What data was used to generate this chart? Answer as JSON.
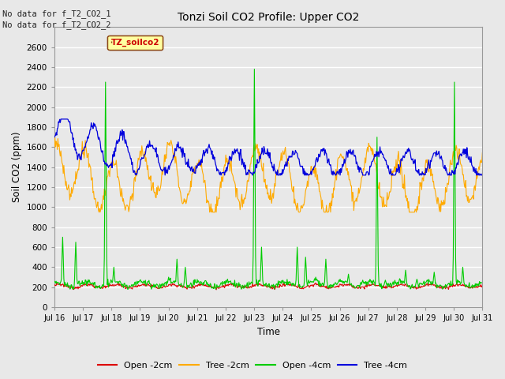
{
  "title": "Tonzi Soil CO2 Profile: Upper CO2",
  "ylabel": "Soil CO2 (ppm)",
  "xlabel": "Time",
  "annotation_lines": [
    "No data for f_T2_CO2_1",
    "No data for f_T2_CO2_2"
  ],
  "legend_label": "TZ_soilco2",
  "ylim": [
    0,
    2800
  ],
  "yticks": [
    0,
    200,
    400,
    600,
    800,
    1000,
    1200,
    1400,
    1600,
    1800,
    2000,
    2200,
    2400,
    2600
  ],
  "colors": {
    "open_2cm": "#dd0000",
    "tree_2cm": "#ffaa00",
    "open_4cm": "#00cc00",
    "tree_4cm": "#0000dd"
  },
  "legend_labels": [
    "Open -2cm",
    "Tree -2cm",
    "Open -4cm",
    "Tree -4cm"
  ],
  "background_color": "#e8e8e8",
  "plot_bg_color": "#e8e8e8",
  "grid_color": "#ffffff",
  "num_days": 15,
  "start_day": 16,
  "end_day": 31,
  "points_per_day": 48
}
